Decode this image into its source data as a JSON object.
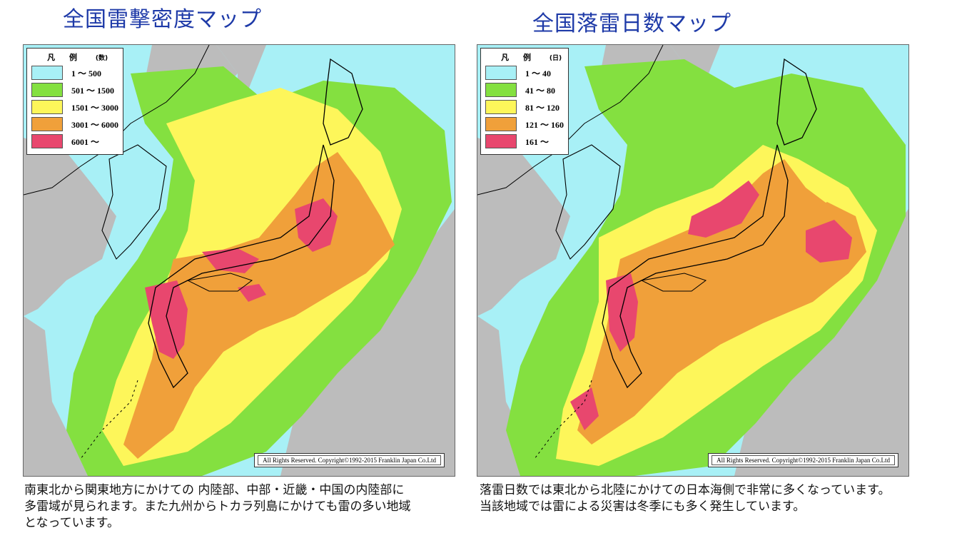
{
  "left_panel": {
    "title": "全国雷撃密度マップ",
    "legend": {
      "title": "凡 例",
      "unit": "(数)",
      "items": [
        {
          "label": "1 ～ 500",
          "color": "#a8f0f6"
        },
        {
          "label": "501 ～ 1500",
          "color": "#84e040"
        },
        {
          "label": "1501 ～ 3000",
          "color": "#fdf65a"
        },
        {
          "label": "3001 ～ 6000",
          "color": "#f0a03a"
        },
        {
          "label": "6001 ～",
          "color": "#e8476e"
        }
      ]
    },
    "copyright": "All Rights Reserved. Copyright©1992-2015  Franklin Japan Co.Ltd",
    "caption": [
      "南東北から関東地方にかけての 内陸部、中部・近畿・中国の内陸部に",
      "多雷域が見られます。また九州からトカラ列島にかけても雷の多い地域",
      "となっています。"
    ]
  },
  "right_panel": {
    "title": "全国落雷日数マップ",
    "legend": {
      "title": "凡 例",
      "unit": "(日)",
      "items": [
        {
          "label": "1 ～ 40",
          "color": "#a8f0f6"
        },
        {
          "label": "41 ～ 80",
          "color": "#84e040"
        },
        {
          "label": "81 ～ 120",
          "color": "#fdf65a"
        },
        {
          "label": "121 ～ 160",
          "color": "#f0a03a"
        },
        {
          "label": "161 ～",
          "color": "#e8476e"
        }
      ]
    },
    "copyright": "All Rights Reserved. Copyright©1992-2015  Franklin Japan Co.Ltd",
    "caption": [
      "落雷日数では東北から北陸にかけての日本海側で非常に多くなっています。",
      "当該地域では雷による災害は冬季にも多く発生しています。"
    ]
  },
  "colors": {
    "land_outside": "#bcbcbc",
    "title_blue": "#1e3aa8"
  }
}
